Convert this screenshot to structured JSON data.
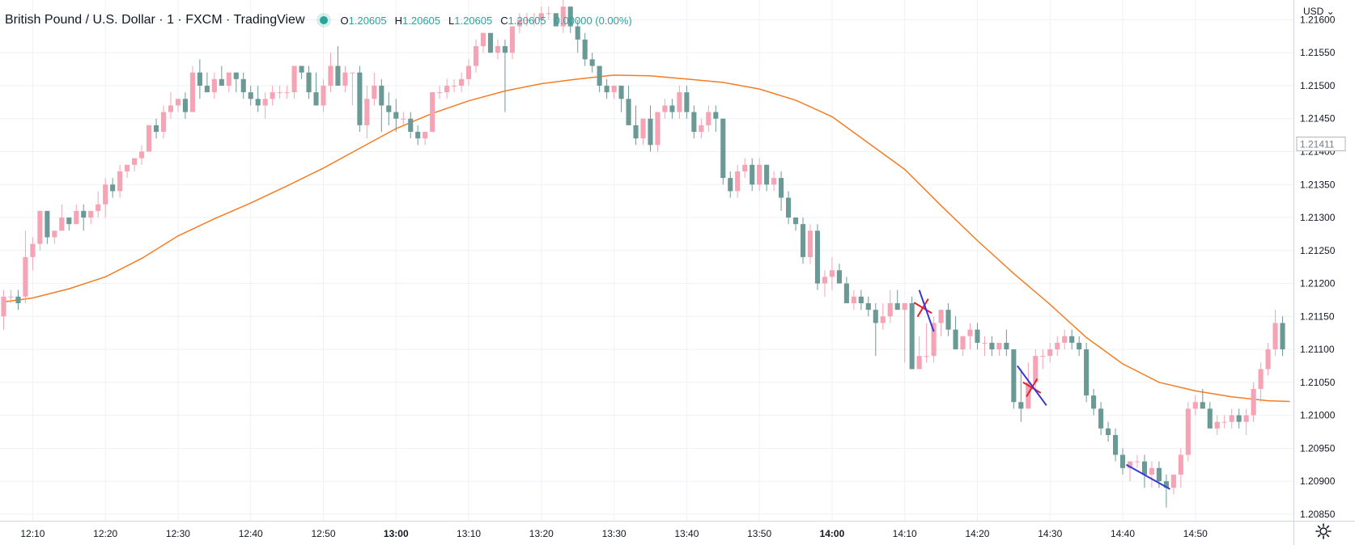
{
  "header": {
    "symbol": "British Pound / U.S. Dollar · 1 · FXCM · TradingView",
    "ohlc": [
      {
        "label": "O",
        "value": "1.20605"
      },
      {
        "label": "H",
        "value": "1.20605"
      },
      {
        "label": "L",
        "value": "1.20605"
      },
      {
        "label": "C",
        "value": "1.20605"
      }
    ],
    "change": "0.00000 (0.00%)"
  },
  "price_scale": {
    "currency": "USD",
    "last_price_label": "1.21411"
  },
  "colors": {
    "up": "#f5a3b5",
    "down": "#6b9a96",
    "ma": "#f57c22",
    "grid": "#eef1f6",
    "marker_red": "#e8202a",
    "marker_blue": "#3437d9",
    "accent": "#26a69a",
    "text": "#131722"
  },
  "chart_data": {
    "type": "candlestick",
    "x_tick_labels": [
      "12:10",
      "12:20",
      "12:30",
      "12:40",
      "12:50",
      "13:00",
      "13:10",
      "13:20",
      "13:30",
      "13:40",
      "13:50",
      "14:00",
      "14:10",
      "14:20",
      "14:30",
      "14:40",
      "14:50"
    ],
    "x_tick_minutes": [
      10,
      20,
      30,
      40,
      50,
      60,
      70,
      80,
      90,
      100,
      110,
      120,
      130,
      140,
      150,
      160,
      170
    ],
    "y_tick_labels": [
      "1.20850",
      "1.20900",
      "1.20950",
      "1.21000",
      "1.21050",
      "1.21100",
      "1.21150",
      "1.21200",
      "1.21250",
      "1.21300",
      "1.21350",
      "1.21400",
      "1.21450",
      "1.21500",
      "1.21550",
      "1.21600"
    ],
    "y_tick_values": [
      1.2085,
      1.209,
      1.2095,
      1.21,
      1.2105,
      1.211,
      1.2115,
      1.212,
      1.2125,
      1.213,
      1.2135,
      1.214,
      1.2145,
      1.215,
      1.2155,
      1.216
    ],
    "ylim": [
      1.2084,
      1.2163
    ],
    "x_range_minutes": [
      5.5,
      183.5
    ],
    "grid": true,
    "candles_start_minute": 6,
    "candles": [
      [
        1.2115,
        1.2119,
        1.2113,
        1.2118
      ],
      [
        1.2118,
        1.2119,
        1.2117,
        1.2118
      ],
      [
        1.2118,
        1.2119,
        1.2116,
        1.2117
      ],
      [
        1.2118,
        1.2128,
        1.2117,
        1.2124
      ],
      [
        1.2124,
        1.2127,
        1.2122,
        1.2126
      ],
      [
        1.2126,
        1.2131,
        1.2125,
        1.2131
      ],
      [
        1.2131,
        1.2131,
        1.2126,
        1.2127
      ],
      [
        1.2127,
        1.2128,
        1.2126,
        1.2128
      ],
      [
        1.2128,
        1.2132,
        1.2128,
        1.213
      ],
      [
        1.213,
        1.213,
        1.2128,
        1.2129
      ],
      [
        1.2129,
        1.2132,
        1.2129,
        1.2131
      ],
      [
        1.2131,
        1.2132,
        1.2128,
        1.213
      ],
      [
        1.213,
        1.2131,
        1.2129,
        1.2131
      ],
      [
        1.2131,
        1.2134,
        1.213,
        1.2132
      ],
      [
        1.2132,
        1.2136,
        1.213,
        1.2135
      ],
      [
        1.2135,
        1.2136,
        1.2133,
        1.2134
      ],
      [
        1.2134,
        1.2138,
        1.2133,
        1.2137
      ],
      [
        1.2137,
        1.2138,
        1.2136,
        1.2138
      ],
      [
        1.2138,
        1.2139,
        1.2137,
        1.2139
      ],
      [
        1.2139,
        1.2141,
        1.2138,
        1.214
      ],
      [
        1.214,
        1.2144,
        1.214,
        1.2144
      ],
      [
        1.2144,
        1.2145,
        1.2142,
        1.2143
      ],
      [
        1.2143,
        1.2147,
        1.2142,
        1.2146
      ],
      [
        1.2146,
        1.2149,
        1.2145,
        1.2147
      ],
      [
        1.2147,
        1.2148,
        1.2146,
        1.2148
      ],
      [
        1.2148,
        1.2149,
        1.2145,
        1.2146
      ],
      [
        1.2146,
        1.2153,
        1.2146,
        1.2152
      ],
      [
        1.2152,
        1.2154,
        1.2148,
        1.215
      ],
      [
        1.215,
        1.2152,
        1.2149,
        1.2149
      ],
      [
        1.2149,
        1.2152,
        1.2148,
        1.2151
      ],
      [
        1.2151,
        1.2153,
        1.215,
        1.215
      ],
      [
        1.215,
        1.2152,
        1.2149,
        1.2152
      ],
      [
        1.2152,
        1.2152,
        1.2149,
        1.2151
      ],
      [
        1.2151,
        1.2152,
        1.2148,
        1.2149
      ],
      [
        1.2149,
        1.215,
        1.2147,
        1.2148
      ],
      [
        1.2148,
        1.215,
        1.2146,
        1.2147
      ],
      [
        1.2147,
        1.2149,
        1.2145,
        1.2148
      ],
      [
        1.2148,
        1.215,
        1.2147,
        1.2149
      ],
      [
        1.2149,
        1.215,
        1.2148,
        1.2149
      ],
      [
        1.2149,
        1.215,
        1.2148,
        1.2149
      ],
      [
        1.2149,
        1.2153,
        1.2148,
        1.2153
      ],
      [
        1.2153,
        1.2153,
        1.2151,
        1.2152
      ],
      [
        1.2152,
        1.2153,
        1.2148,
        1.2149
      ],
      [
        1.2149,
        1.2152,
        1.2147,
        1.2147
      ],
      [
        1.2147,
        1.2151,
        1.2146,
        1.215
      ],
      [
        1.215,
        1.2155,
        1.2149,
        1.2153
      ],
      [
        1.2153,
        1.2156,
        1.215,
        1.215
      ],
      [
        1.215,
        1.2153,
        1.2149,
        1.2152
      ],
      [
        1.2152,
        1.2152,
        1.2147,
        1.2152
      ],
      [
        1.2152,
        1.2153,
        1.2143,
        1.2144
      ],
      [
        1.2144,
        1.215,
        1.2142,
        1.2148
      ],
      [
        1.2148,
        1.2152,
        1.2147,
        1.215
      ],
      [
        1.215,
        1.2151,
        1.2143,
        1.2147
      ],
      [
        1.2147,
        1.2149,
        1.2144,
        1.2146
      ],
      [
        1.2146,
        1.2148,
        1.2143,
        1.2145
      ],
      [
        1.2145,
        1.2146,
        1.2144,
        1.2145
      ],
      [
        1.2145,
        1.2146,
        1.2142,
        1.2143
      ],
      [
        1.2143,
        1.2144,
        1.2141,
        1.2142
      ],
      [
        1.2142,
        1.2143,
        1.2141,
        1.2143
      ],
      [
        1.2143,
        1.2149,
        1.2143,
        1.2149
      ],
      [
        1.2149,
        1.215,
        1.2148,
        1.2149
      ],
      [
        1.2149,
        1.2151,
        1.2148,
        1.215
      ],
      [
        1.215,
        1.2151,
        1.2149,
        1.215
      ],
      [
        1.215,
        1.2152,
        1.2149,
        1.2151
      ],
      [
        1.2151,
        1.2154,
        1.215,
        1.2153
      ],
      [
        1.2153,
        1.2157,
        1.2152,
        1.2156
      ],
      [
        1.2156,
        1.2158,
        1.2155,
        1.2158
      ],
      [
        1.2158,
        1.2158,
        1.2155,
        1.2155
      ],
      [
        1.2155,
        1.2157,
        1.2154,
        1.2156
      ],
      [
        1.2156,
        1.2157,
        1.2146,
        1.2155
      ],
      [
        1.2155,
        1.2159,
        1.2154,
        1.2159
      ],
      [
        1.2159,
        1.2161,
        1.2158,
        1.216
      ],
      [
        1.216,
        1.2161,
        1.2159,
        1.216
      ],
      [
        1.216,
        1.2161,
        1.2159,
        1.216
      ],
      [
        1.216,
        1.2162,
        1.2159,
        1.2161
      ],
      [
        1.2161,
        1.2162,
        1.216,
        1.2161
      ],
      [
        1.2161,
        1.2161,
        1.2159,
        1.2159
      ],
      [
        1.2159,
        1.2163,
        1.2158,
        1.2162
      ],
      [
        1.2162,
        1.2162,
        1.2158,
        1.2159
      ],
      [
        1.2159,
        1.216,
        1.2155,
        1.2157
      ],
      [
        1.2157,
        1.2158,
        1.2153,
        1.2154
      ],
      [
        1.2154,
        1.2155,
        1.2152,
        1.2153
      ],
      [
        1.2153,
        1.2153,
        1.2149,
        1.215
      ],
      [
        1.215,
        1.2151,
        1.2148,
        1.2149
      ],
      [
        1.2149,
        1.215,
        1.2148,
        1.215
      ],
      [
        1.215,
        1.215,
        1.2146,
        1.2148
      ],
      [
        1.2148,
        1.215,
        1.2144,
        1.2144
      ],
      [
        1.2144,
        1.2147,
        1.2141,
        1.2142
      ],
      [
        1.2142,
        1.2145,
        1.2141,
        1.2145
      ],
      [
        1.2145,
        1.2147,
        1.214,
        1.2141
      ],
      [
        1.2141,
        1.2146,
        1.214,
        1.2146
      ],
      [
        1.2146,
        1.2148,
        1.2145,
        1.2147
      ],
      [
        1.2147,
        1.2148,
        1.2145,
        1.2146
      ],
      [
        1.2146,
        1.215,
        1.2145,
        1.2149
      ],
      [
        1.2149,
        1.215,
        1.2145,
        1.2146
      ],
      [
        1.2146,
        1.2147,
        1.2142,
        1.2143
      ],
      [
        1.2143,
        1.2145,
        1.2142,
        1.2144
      ],
      [
        1.2144,
        1.2147,
        1.2143,
        1.2146
      ],
      [
        1.2146,
        1.2147,
        1.2143,
        1.2145
      ],
      [
        1.2145,
        1.2145,
        1.2135,
        1.2136
      ],
      [
        1.2136,
        1.2137,
        1.2133,
        1.2134
      ],
      [
        1.2134,
        1.2138,
        1.2133,
        1.2137
      ],
      [
        1.2137,
        1.2139,
        1.2136,
        1.2138
      ],
      [
        1.2138,
        1.2139,
        1.2134,
        1.2135
      ],
      [
        1.2135,
        1.2139,
        1.2134,
        1.2138
      ],
      [
        1.2138,
        1.2138,
        1.2134,
        1.2135
      ],
      [
        1.2135,
        1.2137,
        1.2134,
        1.2136
      ],
      [
        1.2136,
        1.2137,
        1.2131,
        1.2133
      ],
      [
        1.2133,
        1.2134,
        1.2129,
        1.213
      ],
      [
        1.213,
        1.213,
        1.2128,
        1.2129
      ],
      [
        1.2129,
        1.213,
        1.2123,
        1.2124
      ],
      [
        1.2124,
        1.2129,
        1.2123,
        1.2128
      ],
      [
        1.2128,
        1.2129,
        1.2119,
        1.212
      ],
      [
        1.212,
        1.2122,
        1.2118,
        1.2121
      ],
      [
        1.2121,
        1.2124,
        1.2119,
        1.2122
      ],
      [
        1.2122,
        1.2123,
        1.212,
        1.212
      ],
      [
        1.212,
        1.2121,
        1.2117,
        1.2117
      ],
      [
        1.2117,
        1.2119,
        1.2116,
        1.2118
      ],
      [
        1.2118,
        1.2119,
        1.2116,
        1.2117
      ],
      [
        1.2117,
        1.2118,
        1.2115,
        1.2116
      ],
      [
        1.2116,
        1.2117,
        1.2109,
        1.2114
      ],
      [
        1.2114,
        1.2117,
        1.2113,
        1.2115
      ],
      [
        1.2115,
        1.2119,
        1.2114,
        1.2117
      ],
      [
        1.2117,
        1.2119,
        1.2116,
        1.2116
      ],
      [
        1.2116,
        1.2117,
        1.2108,
        1.2117
      ],
      [
        1.2117,
        1.2118,
        1.2107,
        1.2107
      ],
      [
        1.2107,
        1.2112,
        1.2107,
        1.2109
      ],
      [
        1.2109,
        1.2114,
        1.2108,
        1.2109
      ],
      [
        1.2109,
        1.2115,
        1.2108,
        1.2114
      ],
      [
        1.2114,
        1.2116,
        1.2112,
        1.2116
      ],
      [
        1.2116,
        1.2117,
        1.2112,
        1.2113
      ],
      [
        1.2113,
        1.2115,
        1.211,
        1.211
      ],
      [
        1.211,
        1.2112,
        1.2109,
        1.2112
      ],
      [
        1.2112,
        1.2114,
        1.211,
        1.2113
      ],
      [
        1.2113,
        1.2114,
        1.211,
        1.2111
      ],
      [
        1.2111,
        1.2112,
        1.2109,
        1.2111
      ],
      [
        1.2111,
        1.2112,
        1.2109,
        1.211
      ],
      [
        1.211,
        1.2111,
        1.2109,
        1.2111
      ],
      [
        1.2111,
        1.2113,
        1.2109,
        1.211
      ],
      [
        1.211,
        1.211,
        1.2101,
        1.2102
      ],
      [
        1.2102,
        1.2107,
        1.2099,
        1.2101
      ],
      [
        1.2101,
        1.2108,
        1.2101,
        1.2105
      ],
      [
        1.2105,
        1.211,
        1.2104,
        1.2109
      ],
      [
        1.2109,
        1.211,
        1.2107,
        1.2109
      ],
      [
        1.2109,
        1.2111,
        1.2108,
        1.211
      ],
      [
        1.211,
        1.2112,
        1.2109,
        1.2111
      ],
      [
        1.2111,
        1.2113,
        1.211,
        1.2112
      ],
      [
        1.2112,
        1.2113,
        1.211,
        1.2111
      ],
      [
        1.2111,
        1.2112,
        1.2109,
        1.211
      ],
      [
        1.211,
        1.2111,
        1.2102,
        1.2103
      ],
      [
        1.2103,
        1.2104,
        1.21,
        1.2101
      ],
      [
        1.2101,
        1.2102,
        1.2097,
        1.2098
      ],
      [
        1.2098,
        1.2099,
        1.2096,
        1.2097
      ],
      [
        1.2097,
        1.2098,
        1.2093,
        1.2094
      ],
      [
        1.2094,
        1.2095,
        1.2091,
        1.2092
      ],
      [
        1.2092,
        1.2093,
        1.209,
        1.2093
      ],
      [
        1.2093,
        1.2094,
        1.2092,
        1.2093
      ],
      [
        1.2093,
        1.2094,
        1.2089,
        1.2091
      ],
      [
        1.2091,
        1.2093,
        1.2089,
        1.2092
      ],
      [
        1.2092,
        1.2093,
        1.2089,
        1.209
      ],
      [
        1.209,
        1.2091,
        1.2086,
        1.2089
      ],
      [
        1.2089,
        1.2091,
        1.2088,
        1.2091
      ],
      [
        1.2091,
        1.2095,
        1.2089,
        1.2094
      ],
      [
        1.2094,
        1.2102,
        1.2093,
        1.2101
      ],
      [
        1.2101,
        1.2103,
        1.21,
        1.2102
      ],
      [
        1.2102,
        1.2104,
        1.2101,
        1.2101
      ],
      [
        1.2101,
        1.2102,
        1.2098,
        1.2098
      ],
      [
        1.2098,
        1.21,
        1.2097,
        1.2099
      ],
      [
        1.2099,
        1.21,
        1.2098,
        1.2099
      ],
      [
        1.2099,
        1.2101,
        1.2098,
        1.21
      ],
      [
        1.21,
        1.2101,
        1.2098,
        1.2099
      ],
      [
        1.2099,
        1.2101,
        1.2097,
        1.21
      ],
      [
        1.21,
        1.2105,
        1.2099,
        1.2104
      ],
      [
        1.2104,
        1.2108,
        1.2102,
        1.2107
      ],
      [
        1.2107,
        1.2111,
        1.2106,
        1.211
      ],
      [
        1.211,
        1.2116,
        1.2109,
        1.2114
      ],
      [
        1.2114,
        1.2115,
        1.2109,
        1.211
      ]
    ],
    "ma": [
      [
        6,
        1.21172
      ],
      [
        10,
        1.21178
      ],
      [
        15,
        1.21192
      ],
      [
        20,
        1.2121
      ],
      [
        25,
        1.21238
      ],
      [
        30,
        1.21272
      ],
      [
        35,
        1.21298
      ],
      [
        40,
        1.21322
      ],
      [
        45,
        1.21348
      ],
      [
        50,
        1.21375
      ],
      [
        55,
        1.21405
      ],
      [
        60,
        1.21435
      ],
      [
        65,
        1.21458
      ],
      [
        70,
        1.21477
      ],
      [
        75,
        1.21492
      ],
      [
        80,
        1.21503
      ],
      [
        85,
        1.2151
      ],
      [
        90,
        1.21516
      ],
      [
        95,
        1.21515
      ],
      [
        100,
        1.2151
      ],
      [
        105,
        1.21505
      ],
      [
        110,
        1.21495
      ],
      [
        115,
        1.21478
      ],
      [
        120,
        1.21453
      ],
      [
        125,
        1.21413
      ],
      [
        130,
        1.21373
      ],
      [
        135,
        1.21318
      ],
      [
        140,
        1.21265
      ],
      [
        145,
        1.21215
      ],
      [
        150,
        1.21168
      ],
      [
        155,
        1.21118
      ],
      [
        160,
        1.21078
      ],
      [
        165,
        1.2105
      ],
      [
        170,
        1.21037
      ],
      [
        175,
        1.21028
      ],
      [
        180,
        1.21022
      ],
      [
        183,
        1.21021
      ]
    ],
    "markers": [
      {
        "type": "cross",
        "minute": 132.5,
        "price": 1.21163,
        "color": "red"
      },
      {
        "type": "cross",
        "minute": 147.5,
        "price": 1.21042,
        "color": "red"
      },
      {
        "type": "line",
        "from": [
          132,
          1.2119
        ],
        "to": [
          134,
          1.21127
        ],
        "color": "blue"
      },
      {
        "type": "line",
        "from": [
          145.5,
          1.21075
        ],
        "to": [
          149.5,
          1.21015
        ],
        "color": "blue"
      },
      {
        "type": "line",
        "from": [
          160.5,
          1.20925
        ],
        "to": [
          166.5,
          1.20888
        ],
        "color": "blue"
      }
    ]
  }
}
